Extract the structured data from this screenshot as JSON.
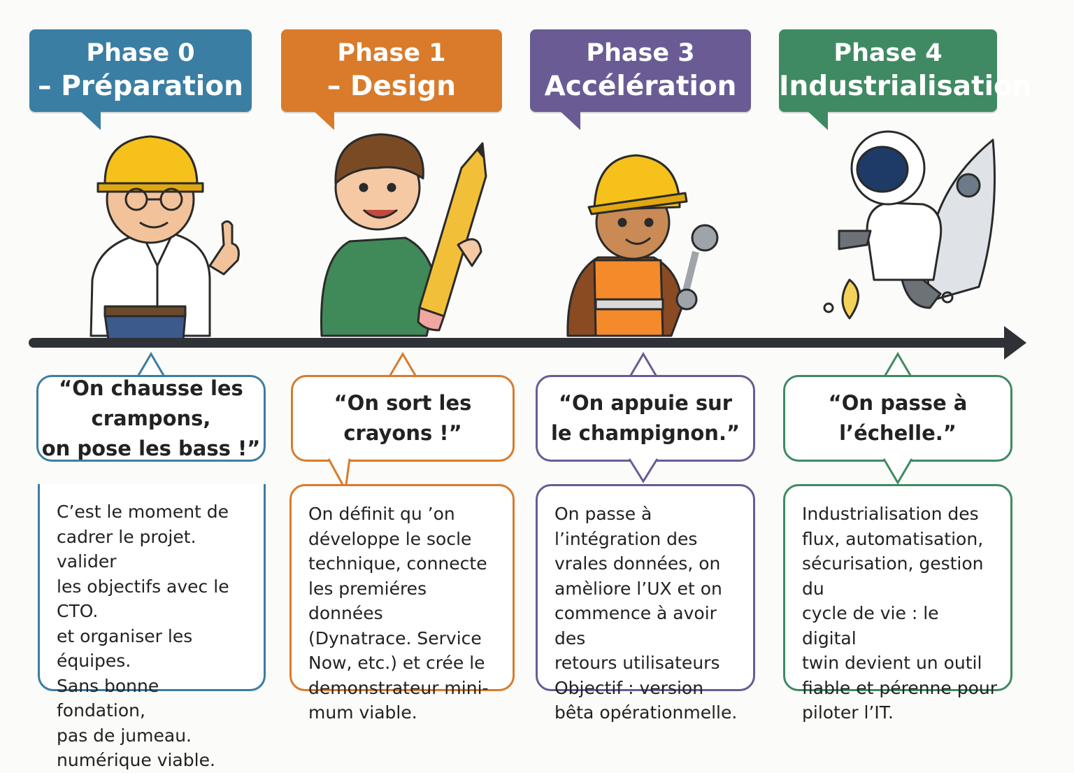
{
  "colors": {
    "phase0": "#3a7ea3",
    "phase1": "#d97b2b",
    "phase3": "#6a5b94",
    "phase4": "#3f8a62",
    "timeline": "#2e3236"
  },
  "phases": [
    {
      "title_line1": "Phase 0",
      "title_line2": "– Préparation",
      "character": "engineer-thumbs-up-icon",
      "quote": "“On chausse les\ncrampons,\non pose les bass !”",
      "description": "C’est le moment de\ncadrer le projet. valider\nles objectifs avec le CTO.\net organiser les équipes.\nSans bonne fondation,\npas de jumeau.\nnumérique viable."
    },
    {
      "title_line1": "Phase 1",
      "title_line2": "– Design",
      "character": "designer-pencil-icon",
      "quote": "“On sort les\ncrayons !”",
      "description": "On définit qu ’on\ndéveloppe le socle\ntechnique, connecte\nles premiéres données\n(Dynatrace. Service\nNow, etc.) et crée le\ndemonstrateur mini-\nmum viable."
    },
    {
      "title_line1": "Phase 3",
      "title_line2": "Accélération",
      "character": "worker-wrench-icon",
      "quote": "“On appuie sur\nle champignon.”",
      "description": "On passe à\nl’intégration des\nvrales données, on\namèliore l’UX et on\ncommence à avoir des\nretours utilisateurs\nObjectif : version\nbêta opérationmelle."
    },
    {
      "title_line1": "Phase 4",
      "title_line2": "Industrialisation",
      "character": "astronaut-rocket-icon",
      "quote": "“On passe à\nl’échelle.”",
      "description": "Industrialisation des\nflux, automatisation,\nsécurisation, gestion du\ncycle de vie : le digital\ntwin devient un outil\nfiable et pérenne pour\npiloter l’IT."
    }
  ]
}
